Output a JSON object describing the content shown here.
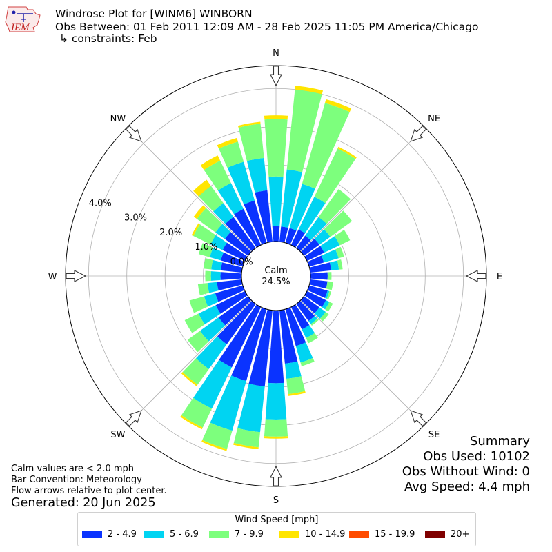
{
  "header": {
    "title_line1": "Windrose Plot for [WINM6] WINBORN",
    "title_line2": "Obs Between: 01 Feb 2011 12:09 AM - 28 Feb 2025 11:05 PM America/Chicago",
    "title_line3": "↳ constraints: Feb",
    "logo_text": "IEM"
  },
  "summary": {
    "heading": "Summary",
    "obs_used": "Obs Used: 10102",
    "obs_without_wind": "Obs Without Wind: 0",
    "avg_speed": "Avg Speed: 4.4 mph"
  },
  "notes": {
    "calm": "Calm values are < 2.0 mph",
    "bar_convention": "Bar Convention: Meteorology",
    "flow_arrows": "Flow arrows relative to plot center."
  },
  "generated": "Generated: 20 Jun 2025",
  "legend": {
    "title": "Wind Speed [mph]",
    "items": [
      {
        "label": "2 - 4.9",
        "color": "#0a33ff"
      },
      {
        "label": "5 - 6.9",
        "color": "#00d4f2"
      },
      {
        "label": "7 - 9.9",
        "color": "#7dff7d"
      },
      {
        "label": "10 - 14.9",
        "color": "#ffe500"
      },
      {
        "label": "15 - 19.9",
        "color": "#ff4c00"
      },
      {
        "label": "20+",
        "color": "#7f0000"
      }
    ]
  },
  "chart_data": {
    "type": "windrose",
    "title": "Windrose Plot for [WINM6] WINBORN",
    "calm_label": "Calm",
    "calm_percent": "24.5%",
    "compass_labels": [
      "N",
      "NE",
      "E",
      "SE",
      "S",
      "SW",
      "W",
      "NW"
    ],
    "radial_ticks": [
      0.0,
      1.0,
      2.0,
      3.0,
      4.0
    ],
    "radial_tick_labels": [
      "0.0%",
      "1.0%",
      "2.0%",
      "3.0%",
      "4.0%"
    ],
    "rmax": 4.6,
    "grid": true,
    "units": "percent frequency",
    "bin_labels": [
      "2 - 4.9",
      "5 - 6.9",
      "7 - 9.9",
      "10 - 14.9",
      "15 - 19.9",
      "20+"
    ],
    "directions_deg": [
      0,
      10,
      20,
      30,
      40,
      50,
      60,
      70,
      80,
      90,
      100,
      110,
      120,
      130,
      140,
      150,
      160,
      170,
      180,
      190,
      200,
      210,
      220,
      230,
      240,
      250,
      260,
      270,
      280,
      290,
      300,
      310,
      320,
      330,
      340,
      350
    ],
    "cumulative_percent": [
      [
        0.4,
        1.7,
        3.2,
        3.3
      ],
      [
        0.4,
        1.9,
        4.0,
        4.1
      ],
      [
        0.4,
        1.6,
        3.8,
        3.9
      ],
      [
        0.45,
        1.4,
        2.8,
        2.85
      ],
      [
        0.4,
        1.0,
        1.9,
        1.9
      ],
      [
        0.5,
        0.85,
        1.55,
        1.55
      ],
      [
        0.5,
        0.95,
        1.25,
        1.25
      ],
      [
        0.4,
        0.8,
        0.95,
        0.95
      ],
      [
        0.55,
        0.75,
        0.85,
        0.85
      ],
      [
        0.45,
        0.45,
        0.55,
        0.55
      ],
      [
        0.45,
        0.45,
        0.6,
        0.6
      ],
      [
        0.5,
        0.55,
        0.6,
        0.6
      ],
      [
        0.55,
        0.65,
        0.75,
        0.75
      ],
      [
        0.5,
        0.7,
        0.8,
        0.8
      ],
      [
        0.55,
        0.65,
        0.7,
        0.7
      ],
      [
        0.65,
        0.9,
        1.05,
        1.05
      ],
      [
        1.0,
        1.45,
        1.55,
        1.55
      ],
      [
        1.4,
        1.8,
        2.2,
        2.25
      ],
      [
        1.9,
        2.85,
        3.3,
        3.35
      ],
      [
        2.0,
        3.2,
        3.6,
        3.65
      ],
      [
        1.95,
        3.3,
        3.8,
        3.85
      ],
      [
        1.75,
        2.95,
        3.5,
        3.55
      ],
      [
        1.3,
        2.1,
        2.6,
        2.65
      ],
      [
        0.95,
        1.55,
        1.95,
        1.95
      ],
      [
        0.85,
        1.35,
        1.75,
        1.75
      ],
      [
        0.75,
        1.05,
        1.45,
        1.45
      ],
      [
        0.65,
        0.9,
        1.15,
        1.15
      ],
      [
        0.55,
        0.8,
        0.95,
        0.95
      ],
      [
        0.55,
        0.8,
        1.0,
        1.0
      ],
      [
        0.6,
        0.9,
        1.2,
        1.2
      ],
      [
        0.65,
        1.0,
        1.5,
        1.55
      ],
      [
        0.75,
        1.05,
        1.65,
        1.75
      ],
      [
        1.0,
        1.45,
        2.0,
        2.2
      ],
      [
        1.05,
        1.8,
        2.45,
        2.6
      ],
      [
        1.15,
        2.2,
        2.75,
        2.85
      ],
      [
        1.35,
        2.2,
        3.1,
        3.15
      ]
    ]
  }
}
